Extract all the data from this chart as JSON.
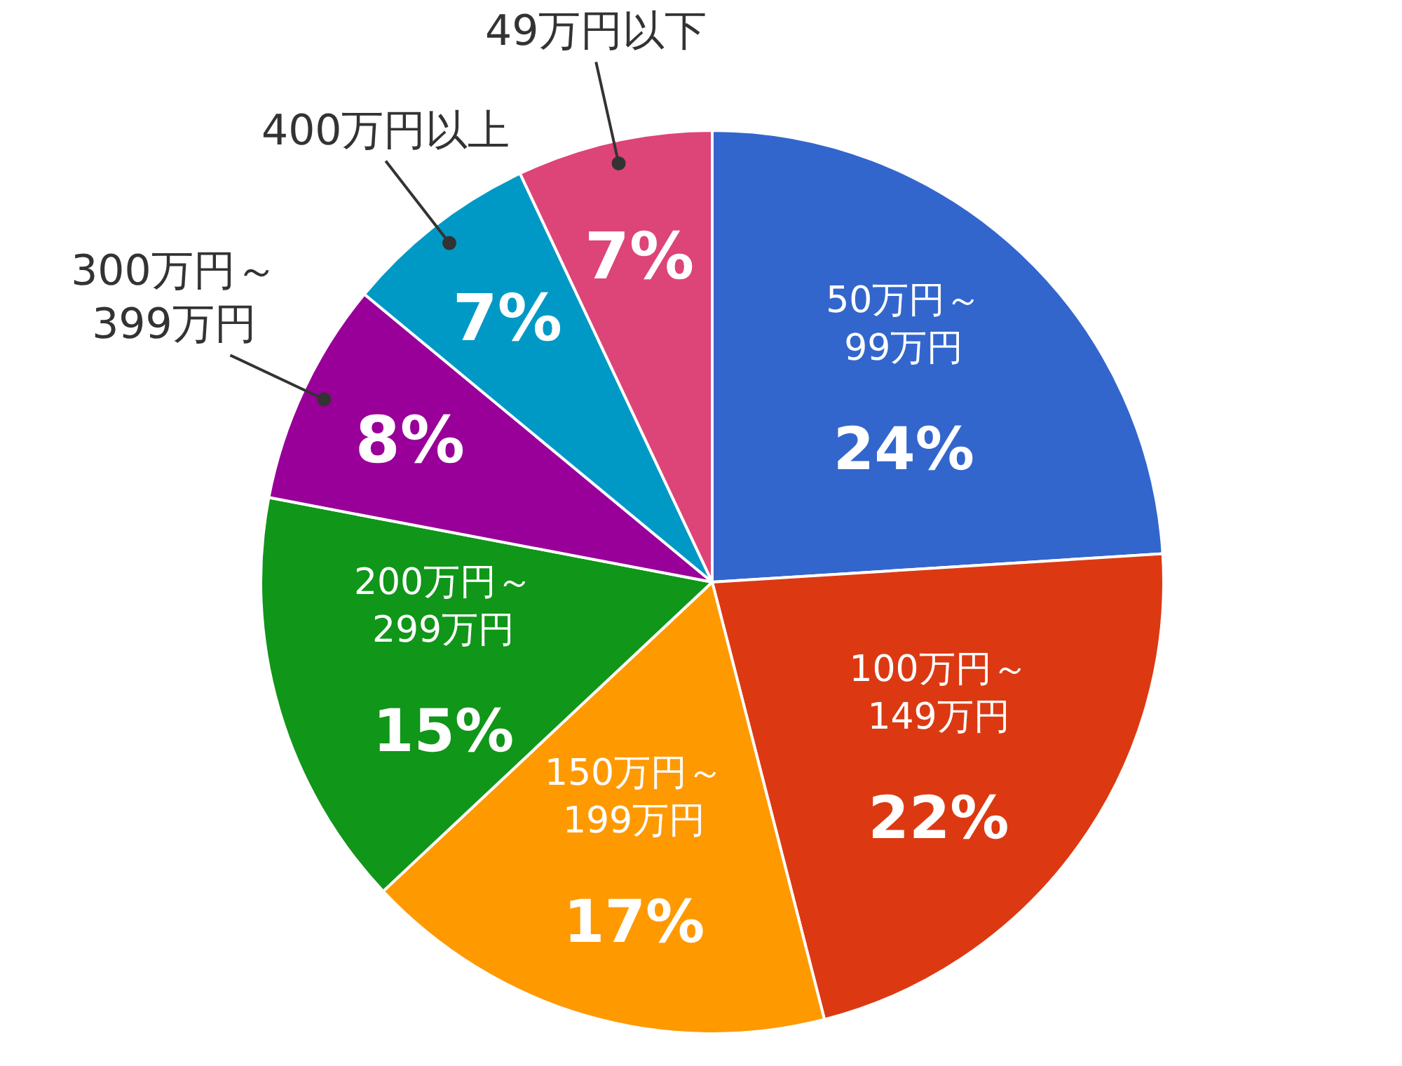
{
  "chart_data": {
    "type": "pie",
    "categories": [
      "50万円～99万円",
      "100万円～149万円",
      "150万円～199万円",
      "200万円～299万円",
      "300万円～399万円",
      "400万円以上",
      "49万円以下"
    ],
    "values": [
      24,
      22,
      17,
      15,
      8,
      7,
      7
    ],
    "value_labels": [
      "24%",
      "22%",
      "17%",
      "15%",
      "8%",
      "7%",
      "7%"
    ],
    "colors": [
      "#3366cc",
      "#dc3912",
      "#ff9900",
      "#109618",
      "#990099",
      "#0099c6",
      "#dd4477"
    ]
  }
}
